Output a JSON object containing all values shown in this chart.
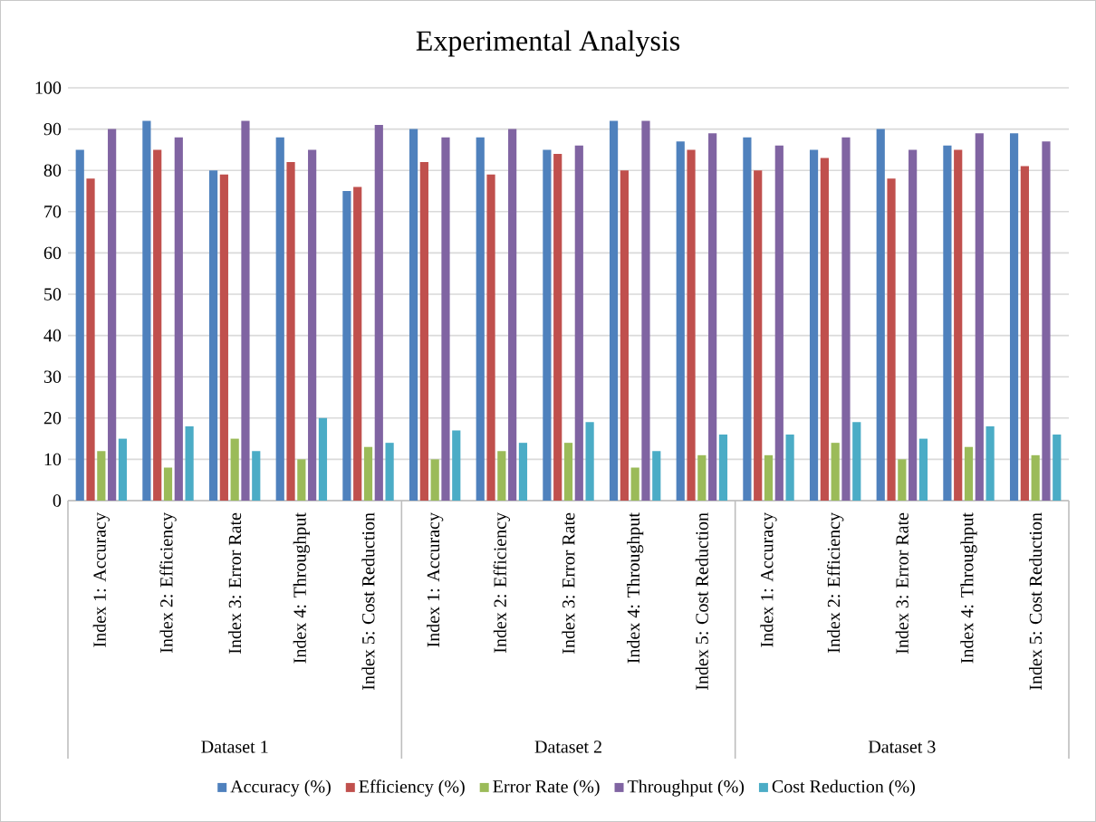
{
  "chart_data": {
    "type": "bar",
    "title": "Experimental Analysis",
    "categories": [
      "Index 1: Accuracy",
      "Index 2: Efficiency",
      "Index 3: Error Rate",
      "Index 4: Throughput",
      "Index 5: Cost Reduction",
      "Index 1: Accuracy",
      "Index 2: Efficiency",
      "Index 3: Error Rate",
      "Index 4: Throughput",
      "Index 5: Cost Reduction",
      "Index 1: Accuracy",
      "Index 2: Efficiency",
      "Index 3: Error Rate",
      "Index 4: Throughput",
      "Index 5: Cost Reduction"
    ],
    "annotations": [
      "Dataset 1",
      "Dataset 2",
      "Dataset 3"
    ],
    "series": [
      {
        "name": "Accuracy (%)",
        "color": "#4f81bd",
        "values": [
          85,
          92,
          80,
          88,
          75,
          90,
          88,
          85,
          92,
          87,
          88,
          85,
          90,
          86,
          89
        ]
      },
      {
        "name": "Efficiency (%)",
        "color": "#c0504d",
        "values": [
          78,
          85,
          79,
          82,
          76,
          82,
          79,
          84,
          80,
          85,
          80,
          83,
          78,
          85,
          81
        ]
      },
      {
        "name": "Error Rate (%)",
        "color": "#9bbb59",
        "values": [
          12,
          8,
          15,
          10,
          13,
          10,
          12,
          14,
          8,
          11,
          11,
          14,
          10,
          13,
          11
        ]
      },
      {
        "name": "Throughput (%)",
        "color": "#8064a2",
        "values": [
          90,
          88,
          92,
          85,
          91,
          88,
          90,
          86,
          92,
          89,
          86,
          88,
          85,
          89,
          87
        ]
      },
      {
        "name": "Cost Reduction (%)",
        "color": "#4bacc6",
        "values": [
          15,
          18,
          12,
          20,
          14,
          17,
          14,
          19,
          12,
          16,
          16,
          19,
          15,
          18,
          16
        ]
      }
    ],
    "ylim": [
      0,
      100
    ],
    "yticks": [
      0,
      10,
      20,
      30,
      40,
      50,
      60,
      70,
      80,
      90,
      100
    ],
    "grid": "y",
    "legend": "bottom"
  }
}
